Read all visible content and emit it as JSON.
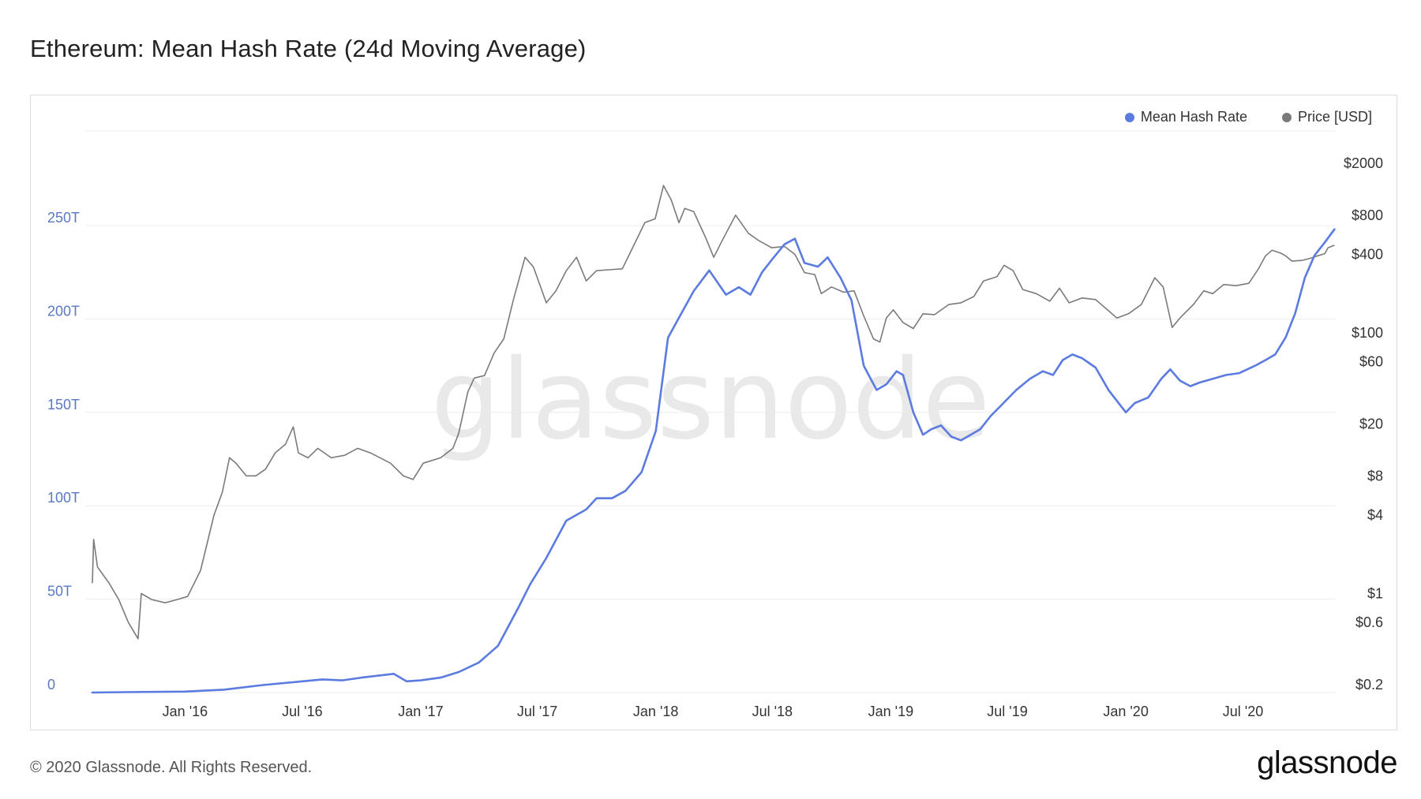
{
  "title": "Ethereum: Mean Hash Rate (24d Moving Average)",
  "footer": {
    "copyright": "© 2020 Glassnode. All Rights Reserved.",
    "brand": "glassnode"
  },
  "watermark": "glassnode",
  "colors": {
    "hash": "#5b7be0",
    "price": "#7a7a7a",
    "grid": "#ececec",
    "left_axis": "#5b78c4",
    "right_axis": "#333333"
  },
  "legend": [
    {
      "label": "Mean Hash Rate",
      "color": "#5b7be0"
    },
    {
      "label": "Price [USD]",
      "color": "#7a7a7a"
    }
  ],
  "chart_data": {
    "type": "line",
    "title": "Ethereum: Mean Hash Rate (24d Moving Average)",
    "x_ticks": [
      "Jan '16",
      "Jul '16",
      "Jan '17",
      "Jul '17",
      "Jan '18",
      "Jul '18",
      "Jan '19",
      "Jul '19",
      "Jan '20",
      "Jul '20"
    ],
    "y_left": {
      "ticks": [
        "0",
        "50T",
        "100T",
        "150T",
        "200T",
        "250T"
      ],
      "range": [
        0,
        280
      ]
    },
    "y_right": {
      "scale": "log",
      "ticks": [
        "$0.2",
        "$0.6",
        "$1",
        "$4",
        "$8",
        "$20",
        "$60",
        "$100",
        "$400",
        "$800",
        "$2000"
      ]
    },
    "grid": true,
    "legend_position": "top-right",
    "series": [
      {
        "name": "Mean Hash Rate",
        "axis": "left",
        "unit": "TH/s",
        "points": [
          [
            "2015-08-10",
            0
          ],
          [
            "2015-10-01",
            0.2
          ],
          [
            "2016-01-01",
            0.5
          ],
          [
            "2016-03-01",
            1.5
          ],
          [
            "2016-05-01",
            4
          ],
          [
            "2016-07-01",
            6
          ],
          [
            "2016-08-01",
            7
          ],
          [
            "2016-09-01",
            6.5
          ],
          [
            "2016-10-01",
            8
          ],
          [
            "2016-11-20",
            10
          ],
          [
            "2016-12-10",
            6
          ],
          [
            "2017-01-01",
            6.5
          ],
          [
            "2017-02-01",
            8
          ],
          [
            "2017-03-01",
            11
          ],
          [
            "2017-04-01",
            16
          ],
          [
            "2017-05-01",
            25
          ],
          [
            "2017-06-01",
            45
          ],
          [
            "2017-06-20",
            58
          ],
          [
            "2017-07-15",
            72
          ],
          [
            "2017-08-15",
            92
          ],
          [
            "2017-09-15",
            98
          ],
          [
            "2017-10-01",
            104
          ],
          [
            "2017-10-25",
            104
          ],
          [
            "2017-11-15",
            108
          ],
          [
            "2017-12-10",
            118
          ],
          [
            "2018-01-01",
            140
          ],
          [
            "2018-01-20",
            190
          ],
          [
            "2018-02-05",
            200
          ],
          [
            "2018-03-01",
            215
          ],
          [
            "2018-03-25",
            226
          ],
          [
            "2018-04-20",
            213
          ],
          [
            "2018-05-10",
            217
          ],
          [
            "2018-05-28",
            213
          ],
          [
            "2018-06-15",
            225
          ],
          [
            "2018-07-01",
            232
          ],
          [
            "2018-07-20",
            240
          ],
          [
            "2018-08-05",
            243
          ],
          [
            "2018-08-20",
            230
          ],
          [
            "2018-09-10",
            228
          ],
          [
            "2018-09-25",
            233
          ],
          [
            "2018-10-15",
            222
          ],
          [
            "2018-11-01",
            210
          ],
          [
            "2018-11-20",
            175
          ],
          [
            "2018-12-10",
            162
          ],
          [
            "2018-12-25",
            165
          ],
          [
            "2019-01-10",
            172
          ],
          [
            "2019-01-20",
            170
          ],
          [
            "2019-02-05",
            150
          ],
          [
            "2019-02-20",
            138
          ],
          [
            "2019-03-05",
            141
          ],
          [
            "2019-03-20",
            143
          ],
          [
            "2019-04-05",
            137
          ],
          [
            "2019-04-20",
            135
          ],
          [
            "2019-05-05",
            138
          ],
          [
            "2019-05-20",
            141
          ],
          [
            "2019-06-05",
            148
          ],
          [
            "2019-06-25",
            155
          ],
          [
            "2019-07-15",
            162
          ],
          [
            "2019-08-05",
            168
          ],
          [
            "2019-08-25",
            172
          ],
          [
            "2019-09-10",
            170
          ],
          [
            "2019-09-25",
            178
          ],
          [
            "2019-10-10",
            181
          ],
          [
            "2019-10-25",
            179
          ],
          [
            "2019-11-15",
            174
          ],
          [
            "2019-12-05",
            162
          ],
          [
            "2020-01-01",
            150
          ],
          [
            "2020-01-15",
            155
          ],
          [
            "2020-02-05",
            158
          ],
          [
            "2020-02-25",
            168
          ],
          [
            "2020-03-10",
            173
          ],
          [
            "2020-03-25",
            167
          ],
          [
            "2020-04-10",
            164
          ],
          [
            "2020-04-25",
            166
          ],
          [
            "2020-05-15",
            168
          ],
          [
            "2020-06-05",
            170
          ],
          [
            "2020-06-25",
            171
          ],
          [
            "2020-07-20",
            175
          ],
          [
            "2020-08-05",
            178
          ],
          [
            "2020-08-20",
            181
          ],
          [
            "2020-09-05",
            190
          ],
          [
            "2020-09-20",
            203
          ],
          [
            "2020-10-05",
            222
          ],
          [
            "2020-10-20",
            234
          ],
          [
            "2020-11-05",
            241
          ],
          [
            "2020-11-20",
            248
          ]
        ]
      },
      {
        "name": "Price [USD]",
        "axis": "right",
        "unit": "USD",
        "points": [
          [
            "2015-08-10",
            1.2
          ],
          [
            "2015-08-12",
            2.6
          ],
          [
            "2015-08-18",
            1.6
          ],
          [
            "2015-09-05",
            1.2
          ],
          [
            "2015-09-20",
            0.9
          ],
          [
            "2015-10-05",
            0.6
          ],
          [
            "2015-10-20",
            0.45
          ],
          [
            "2015-10-25",
            1.0
          ],
          [
            "2015-11-10",
            0.9
          ],
          [
            "2015-12-01",
            0.85
          ],
          [
            "2015-12-20",
            0.9
          ],
          [
            "2016-01-05",
            0.95
          ],
          [
            "2016-01-25",
            1.5
          ],
          [
            "2016-02-15",
            4
          ],
          [
            "2016-02-28",
            6
          ],
          [
            "2016-03-10",
            11
          ],
          [
            "2016-03-20",
            10
          ],
          [
            "2016-04-05",
            8
          ],
          [
            "2016-04-20",
            8
          ],
          [
            "2016-05-05",
            9
          ],
          [
            "2016-05-20",
            12
          ],
          [
            "2016-06-05",
            14
          ],
          [
            "2016-06-17",
            19
          ],
          [
            "2016-06-25",
            12
          ],
          [
            "2016-07-10",
            11
          ],
          [
            "2016-07-25",
            13
          ],
          [
            "2016-08-15",
            11
          ],
          [
            "2016-09-05",
            11.5
          ],
          [
            "2016-09-25",
            13
          ],
          [
            "2016-10-15",
            12
          ],
          [
            "2016-11-15",
            10
          ],
          [
            "2016-12-05",
            8
          ],
          [
            "2016-12-20",
            7.5
          ],
          [
            "2017-01-05",
            10
          ],
          [
            "2017-02-01",
            11
          ],
          [
            "2017-02-20",
            13
          ],
          [
            "2017-03-01",
            17
          ],
          [
            "2017-03-15",
            35
          ],
          [
            "2017-03-25",
            45
          ],
          [
            "2017-04-10",
            47
          ],
          [
            "2017-04-25",
            70
          ],
          [
            "2017-05-10",
            90
          ],
          [
            "2017-05-25",
            180
          ],
          [
            "2017-06-12",
            380
          ],
          [
            "2017-06-25",
            320
          ],
          [
            "2017-07-15",
            170
          ],
          [
            "2017-07-30",
            210
          ],
          [
            "2017-08-15",
            300
          ],
          [
            "2017-08-31",
            380
          ],
          [
            "2017-09-15",
            250
          ],
          [
            "2017-10-01",
            300
          ],
          [
            "2017-10-20",
            305
          ],
          [
            "2017-11-10",
            310
          ],
          [
            "2017-11-28",
            470
          ],
          [
            "2017-12-15",
            700
          ],
          [
            "2017-12-31",
            750
          ],
          [
            "2018-01-13",
            1350
          ],
          [
            "2018-01-25",
            1050
          ],
          [
            "2018-02-06",
            700
          ],
          [
            "2018-02-15",
            900
          ],
          [
            "2018-03-01",
            850
          ],
          [
            "2018-03-20",
            530
          ],
          [
            "2018-04-01",
            380
          ],
          [
            "2018-04-15",
            520
          ],
          [
            "2018-05-05",
            800
          ],
          [
            "2018-05-25",
            580
          ],
          [
            "2018-06-10",
            510
          ],
          [
            "2018-06-30",
            450
          ],
          [
            "2018-07-20",
            460
          ],
          [
            "2018-08-05",
            400
          ],
          [
            "2018-08-20",
            290
          ],
          [
            "2018-09-05",
            280
          ],
          [
            "2018-09-15",
            200
          ],
          [
            "2018-10-01",
            225
          ],
          [
            "2018-10-20",
            205
          ],
          [
            "2018-11-05",
            210
          ],
          [
            "2018-11-20",
            135
          ],
          [
            "2018-12-05",
            90
          ],
          [
            "2018-12-15",
            85
          ],
          [
            "2018-12-25",
            130
          ],
          [
            "2019-01-05",
            150
          ],
          [
            "2019-01-20",
            120
          ],
          [
            "2019-02-05",
            108
          ],
          [
            "2019-02-20",
            140
          ],
          [
            "2019-03-10",
            138
          ],
          [
            "2019-04-01",
            165
          ],
          [
            "2019-04-20",
            170
          ],
          [
            "2019-05-10",
            190
          ],
          [
            "2019-05-25",
            250
          ],
          [
            "2019-06-15",
            270
          ],
          [
            "2019-06-26",
            330
          ],
          [
            "2019-07-10",
            300
          ],
          [
            "2019-07-25",
            215
          ],
          [
            "2019-08-15",
            200
          ],
          [
            "2019-09-05",
            175
          ],
          [
            "2019-09-20",
            220
          ],
          [
            "2019-10-05",
            170
          ],
          [
            "2019-10-25",
            185
          ],
          [
            "2019-11-15",
            180
          ],
          [
            "2019-12-05",
            148
          ],
          [
            "2019-12-18",
            130
          ],
          [
            "2020-01-05",
            140
          ],
          [
            "2020-01-25",
            165
          ],
          [
            "2020-02-15",
            265
          ],
          [
            "2020-02-28",
            225
          ],
          [
            "2020-03-13",
            110
          ],
          [
            "2020-03-25",
            130
          ],
          [
            "2020-04-15",
            165
          ],
          [
            "2020-05-01",
            210
          ],
          [
            "2020-05-15",
            200
          ],
          [
            "2020-06-01",
            235
          ],
          [
            "2020-06-20",
            230
          ],
          [
            "2020-07-10",
            240
          ],
          [
            "2020-07-25",
            310
          ],
          [
            "2020-08-05",
            390
          ],
          [
            "2020-08-15",
            430
          ],
          [
            "2020-08-28",
            410
          ],
          [
            "2020-09-05",
            390
          ],
          [
            "2020-09-15",
            355
          ],
          [
            "2020-10-01",
            360
          ],
          [
            "2020-10-15",
            375
          ],
          [
            "2020-10-25",
            390
          ],
          [
            "2020-11-05",
            405
          ],
          [
            "2020-11-10",
            450
          ],
          [
            "2020-11-20",
            470
          ]
        ]
      }
    ]
  }
}
